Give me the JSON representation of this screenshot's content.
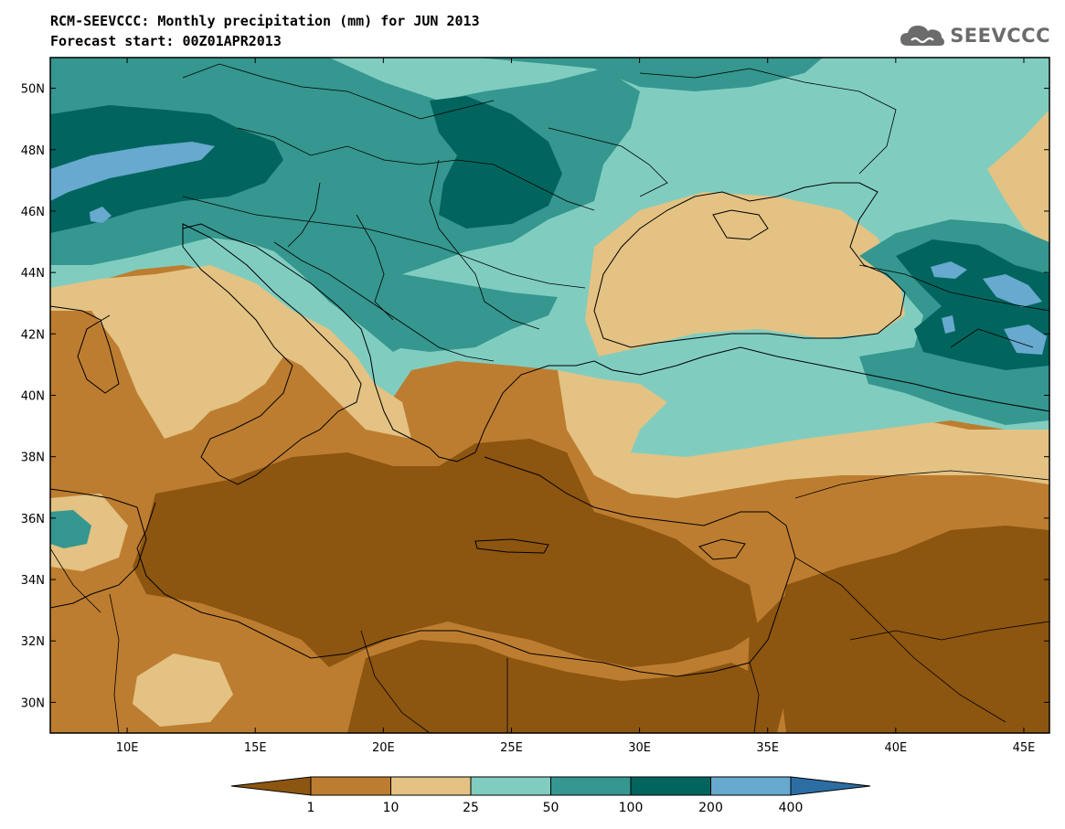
{
  "header": {
    "title": "RCM-SEEVCCC: Monthly precipitation (mm) for JUN 2013",
    "subtitle": "Forecast start: 00Z01APR2013"
  },
  "logo": {
    "text": "SEEVCCC",
    "icon": "cloud-icon",
    "color": "#6b6b6b"
  },
  "map": {
    "lon_range": [
      7,
      46
    ],
    "lat_range": [
      29,
      51
    ],
    "lat_labels": [
      "30N",
      "32N",
      "34N",
      "36N",
      "38N",
      "40N",
      "42N",
      "44N",
      "46N",
      "48N",
      "50N"
    ],
    "lat_values": [
      30,
      32,
      34,
      36,
      38,
      40,
      42,
      44,
      46,
      48,
      50
    ],
    "lon_labels": [
      "10E",
      "15E",
      "20E",
      "25E",
      "30E",
      "35E",
      "40E",
      "45E"
    ],
    "lon_values": [
      10,
      15,
      20,
      25,
      30,
      35,
      40,
      45
    ]
  },
  "colorbar": {
    "thresholds": [
      "1",
      "10",
      "25",
      "50",
      "100",
      "200",
      "400"
    ],
    "colors": [
      "#8c5510",
      "#bd7d30",
      "#e3c283",
      "#80cdc0",
      "#35978f",
      "#01655e",
      "#67a9cf",
      "#2c6ea3"
    ]
  }
}
